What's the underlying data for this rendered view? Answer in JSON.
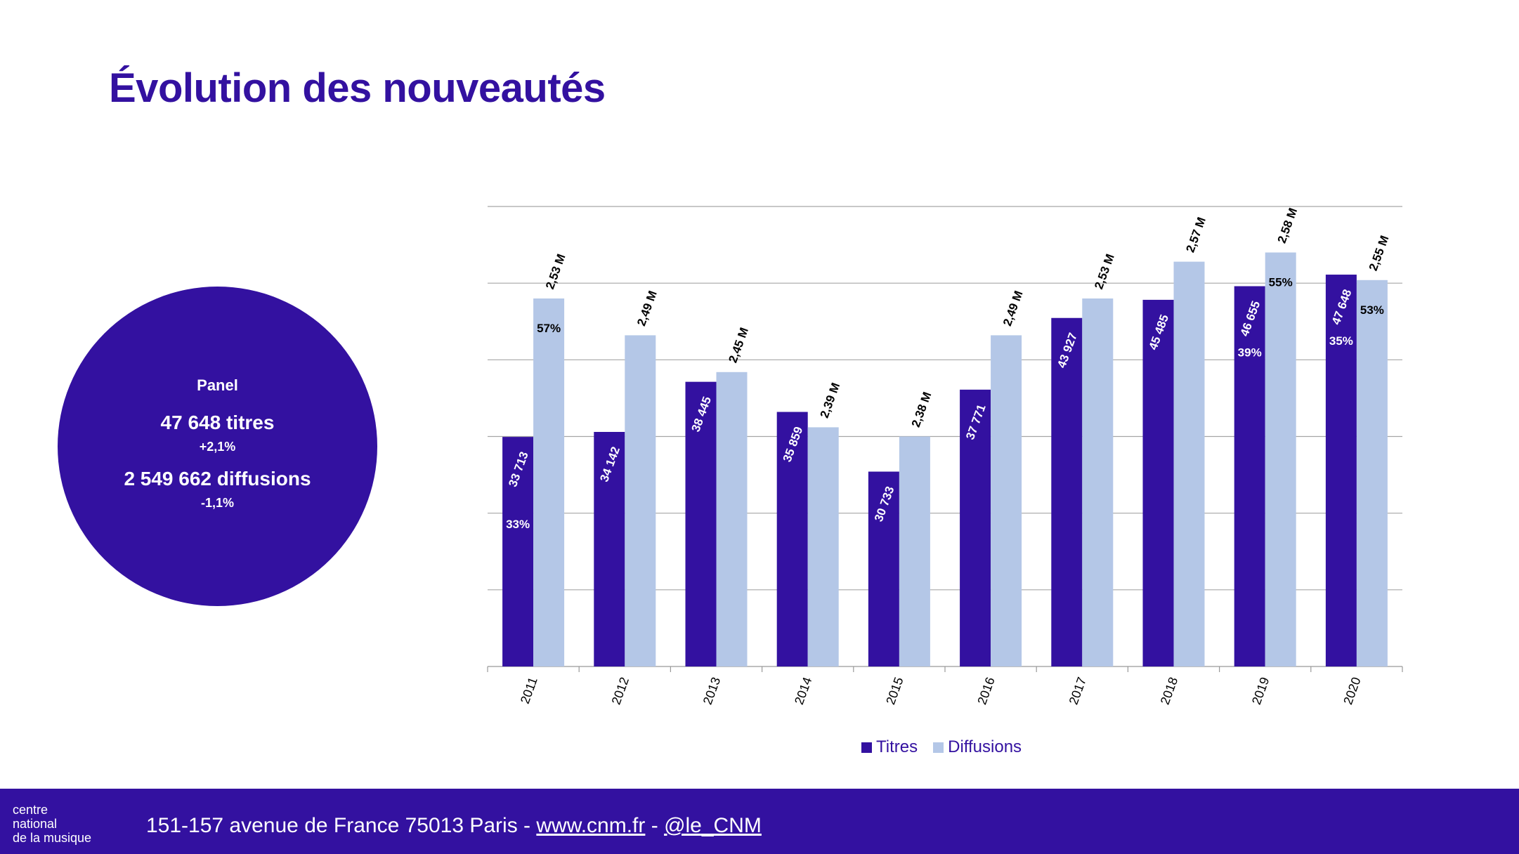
{
  "page": {
    "title": "Évolution des nouveautés"
  },
  "panel": {
    "label": "Panel",
    "titres": "47 648 titres",
    "titres_change": "+2,1%",
    "diffusions": "2 549 662 diffusions",
    "diffusions_change": "-1,1%"
  },
  "colors": {
    "titres": "#3311a0",
    "diffusions": "#b4c7e7",
    "brand": "#3311a0"
  },
  "chart_data": {
    "type": "bar",
    "categories": [
      "2011",
      "2012",
      "2013",
      "2014",
      "2015",
      "2016",
      "2017",
      "2018",
      "2019",
      "2020"
    ],
    "series": [
      {
        "name": "Titres",
        "values": [
          33713,
          34142,
          38445,
          35859,
          30733,
          37771,
          43927,
          45485,
          46655,
          47648
        ],
        "labels": [
          "33 713",
          "34 142",
          "38 445",
          "35 859",
          "30 733",
          "37 771",
          "43 927",
          "45 485",
          "46 655",
          "47 648"
        ],
        "share_labels": [
          "33%",
          "",
          "",
          "",
          "",
          "",
          "",
          "",
          "39%",
          "35%"
        ]
      },
      {
        "name": "Diffusions",
        "values": [
          2.53,
          2.49,
          2.45,
          2.39,
          2.38,
          2.49,
          2.53,
          2.57,
          2.58,
          2.55
        ],
        "labels": [
          "2,53 M",
          "2,49 M",
          "2,45 M",
          "2,39 M",
          "2,38 M",
          "2,49 M",
          "2,53 M",
          "2,57 M",
          "2,58 M",
          "2,55 M"
        ],
        "share_labels": [
          "57%",
          "",
          "",
          "",
          "",
          "",
          "",
          "",
          "55%",
          "53%"
        ]
      }
    ],
    "grid": true,
    "legend_position": "bottom"
  },
  "legend": {
    "titres": "Titres",
    "diffusions": "Diffusions"
  },
  "footer": {
    "logo_line1": "centre",
    "logo_line2": "national",
    "logo_line3": "de la musique",
    "address": "151-157 avenue de France 75013 Paris - ",
    "website": " www.cnm.fr",
    "separator": " - ",
    "twitter": "@le_CNM"
  }
}
